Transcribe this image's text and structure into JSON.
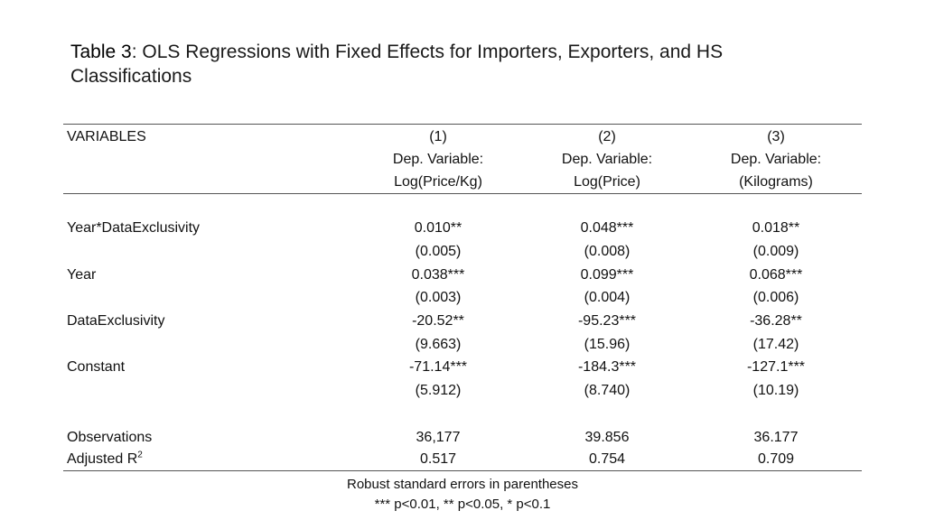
{
  "title": {
    "lead": "Table 3",
    "rest": ": OLS Regressions with Fixed Effects for Importers, Exporters, and HS Classifications"
  },
  "header": {
    "variables": "VARIABLES",
    "columns": [
      {
        "num": "(1)",
        "line1": "Dep. Variable:",
        "line2": "Log(Price/Kg)"
      },
      {
        "num": "(2)",
        "line1": "Dep. Variable:",
        "line2": "Log(Price)"
      },
      {
        "num": "(3)",
        "line1": "Dep. Variable:",
        "line2": "(Kilograms)"
      }
    ]
  },
  "rows": [
    {
      "label": "Year*DataExclusivity",
      "coef": [
        "0.010**",
        "0.048***",
        "0.018**"
      ],
      "se": [
        "(0.005)",
        "(0.008)",
        "(0.009)"
      ]
    },
    {
      "label": "Year",
      "coef": [
        "0.038***",
        "0.099***",
        "0.068***"
      ],
      "se": [
        "(0.003)",
        "(0.004)",
        "(0.006)"
      ]
    },
    {
      "label": "DataExclusivity",
      "coef": [
        "-20.52**",
        "-95.23***",
        "-36.28**"
      ],
      "se": [
        "(9.663)",
        "(15.96)",
        "(17.42)"
      ]
    },
    {
      "label": "Constant",
      "coef": [
        "-71.14***",
        "-184.3***",
        "-127.1***"
      ],
      "se": [
        "(5.912)",
        "(8.740)",
        "(10.19)"
      ]
    }
  ],
  "stats": {
    "observations": {
      "label": "Observations",
      "values": [
        "36,177",
        "39.856",
        "36.177"
      ]
    },
    "r2": {
      "label": "Adjusted R",
      "sup": "2",
      "values": [
        "0.517",
        "0.754",
        "0.709"
      ]
    }
  },
  "notes": [
    "Robust standard errors in parentheses",
    "*** p<0.01, ** p<0.05, * p<0.1"
  ]
}
